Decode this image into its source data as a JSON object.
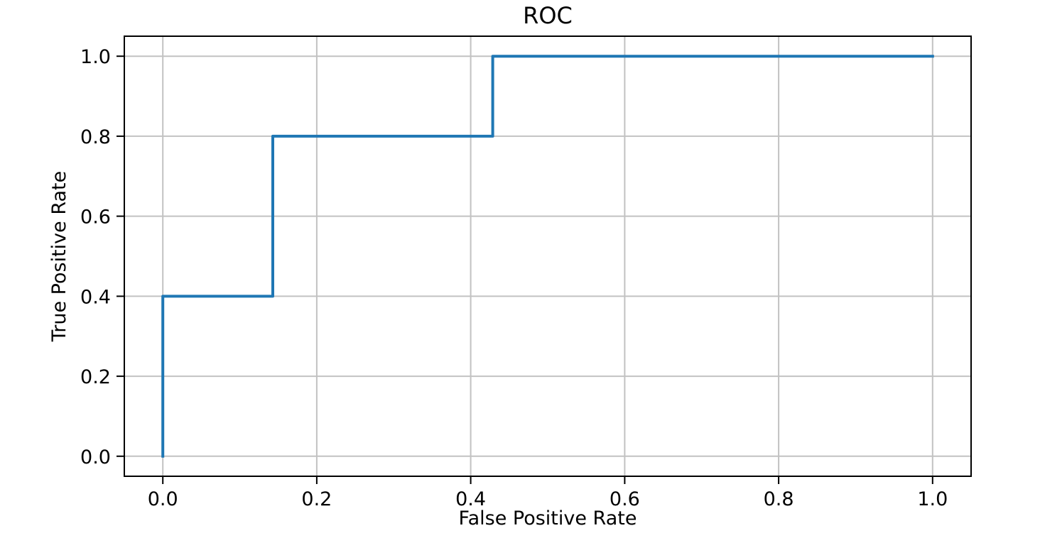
{
  "chart_data": {
    "type": "line",
    "subtype": "step-roc",
    "title": "ROC",
    "xlabel": "False Positive Rate",
    "ylabel": "True Positive Rate",
    "xlim": [
      -0.05,
      1.05
    ],
    "ylim": [
      -0.05,
      1.05
    ],
    "xticks": [
      0.0,
      0.2,
      0.4,
      0.6,
      0.8,
      1.0
    ],
    "yticks": [
      0.0,
      0.2,
      0.4,
      0.6,
      0.8,
      1.0
    ],
    "grid": true,
    "legend": "none",
    "series": [
      {
        "name": "ROC curve",
        "color": "#1f77b4",
        "x": [
          0.0,
          0.0,
          0.1429,
          0.1429,
          0.4286,
          0.4286,
          1.0
        ],
        "y": [
          0.0,
          0.4,
          0.4,
          0.8,
          0.8,
          1.0,
          1.0
        ]
      }
    ],
    "colors": {
      "line": "#1f77b4",
      "grid": "#c2c2c2",
      "spine": "#000000",
      "text": "#000000",
      "background": "#ffffff"
    }
  }
}
